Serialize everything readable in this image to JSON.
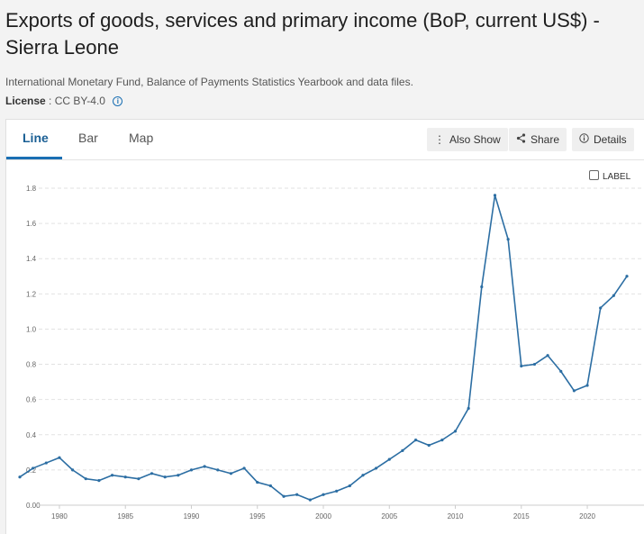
{
  "header": {
    "title": "Exports of goods, services and primary income (BoP, current US$) - Sierra Leone",
    "source": "International Monetary Fund, Balance of Payments Statistics Yearbook and data files.",
    "license_label": "License",
    "license_value": "CC BY-4.0"
  },
  "tabs": [
    {
      "label": "Line",
      "active": true
    },
    {
      "label": "Bar",
      "active": false
    },
    {
      "label": "Map",
      "active": false
    }
  ],
  "toolbar": {
    "also_show": "Also Show",
    "share": "Share",
    "details": "Details",
    "label_toggle": "LABEL"
  },
  "colors": {
    "line": "#2c6ea3",
    "accent": "#1a6fb3",
    "grid": "#e2e2e2"
  },
  "chart_data": {
    "type": "line",
    "x_ticks": [
      1980,
      1985,
      1990,
      1995,
      2000,
      2005,
      2010,
      2015,
      2020
    ],
    "y_ticks": [
      "0.00",
      "0.2",
      "0.4",
      "0.6",
      "0.8",
      "1.0",
      "1.2",
      "1.4",
      "1.6",
      "1.8"
    ],
    "ylim": [
      0,
      1.8
    ],
    "xlim": [
      1977,
      2023
    ],
    "grid": true,
    "series": [
      {
        "x": [
          1977,
          1978,
          1979,
          1980,
          1981,
          1982,
          1983,
          1984,
          1985,
          1986,
          1987,
          1988,
          1989,
          1990,
          1991,
          1992,
          1993,
          1994,
          1995,
          1996,
          1997,
          1998,
          1999,
          2000,
          2001,
          2002,
          2003,
          2004,
          2005,
          2006,
          2007,
          2008,
          2009,
          2010,
          2011,
          2012,
          2013,
          2014,
          2015,
          2016,
          2017,
          2018,
          2019,
          2020,
          2021,
          2022,
          2023
        ],
        "values": [
          0.16,
          0.21,
          0.24,
          0.27,
          0.2,
          0.15,
          0.14,
          0.17,
          0.16,
          0.15,
          0.18,
          0.16,
          0.17,
          0.2,
          0.22,
          0.2,
          0.18,
          0.21,
          0.13,
          0.11,
          0.05,
          0.06,
          0.03,
          0.06,
          0.08,
          0.11,
          0.17,
          0.21,
          0.26,
          0.31,
          0.37,
          0.34,
          0.37,
          0.42,
          0.55,
          1.24,
          1.76,
          1.51,
          0.79,
          0.8,
          0.85,
          0.76,
          0.65,
          0.68,
          1.12,
          1.19,
          1.3
        ]
      }
    ]
  }
}
